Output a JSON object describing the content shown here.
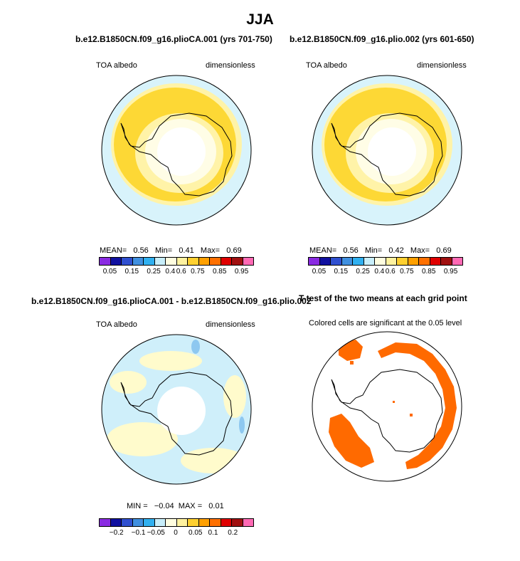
{
  "title": "JJA",
  "panels": [
    {
      "title": "b.e12.B1850CN.f09_g16.plioCA.001 (yrs 701-750)",
      "left_label": "TOA albedo",
      "right_label": "dimensionless",
      "stats": {
        "mean_label": "MEAN=",
        "mean": "0.56",
        "min_label": "Min=",
        "min": "0.41",
        "max_label": "Max=",
        "max": "0.69"
      }
    },
    {
      "title": "b.e12.B1850CN.f09_g16.plio.002 (yrs 601-650)",
      "left_label": "TOA albedo",
      "right_label": "dimensionless",
      "stats": {
        "mean_label": "MEAN=",
        "mean": "0.56",
        "min_label": "Min=",
        "min": "0.42",
        "max_label": "Max=",
        "max": "0.69"
      }
    },
    {
      "title": "b.e12.B1850CN.f09_g16.plioCA.001 - b.e12.B1850CN.f09_g16.plio.002",
      "left_label": "TOA albedo",
      "right_label": "dimensionless",
      "stats": {
        "min_label": "MIN =",
        "min": "−0.04",
        "max_label": "MAX =",
        "max": "0.01"
      }
    },
    {
      "title": "T-test of the two means at each grid point",
      "subtitle": "Colored cells are significant at the 0.05 level"
    }
  ],
  "colorbar_abs": {
    "colors": [
      "#8a2be2",
      "#1010a0",
      "#3050d0",
      "#4090e0",
      "#30b0f0",
      "#c8eefa",
      "#fffde0",
      "#fff2a0",
      "#ffd030",
      "#ffa000",
      "#ff7000",
      "#e00000",
      "#a01010",
      "#ff69b4"
    ],
    "ticks": [
      "0.05",
      "0.15",
      "0.25",
      "0.4",
      "0.6",
      "0.75",
      "0.85",
      "0.95"
    ]
  },
  "colorbar_diff": {
    "colors": [
      "#8a2be2",
      "#1010a0",
      "#3050d0",
      "#4090e0",
      "#30b0f0",
      "#c8eefa",
      "#fffde0",
      "#fff2a0",
      "#ffd030",
      "#ffa000",
      "#ff7000",
      "#e00000",
      "#a01010",
      "#ff69b4"
    ],
    "ticks": [
      "−0.2",
      "−0.1",
      "−0.05",
      "0",
      "0.05",
      "0.1",
      "0.2"
    ]
  },
  "colors": {
    "ocean_low": "#d8f3fb",
    "albedo_high": "#fdd835",
    "albedo_mid": "#fff3a8",
    "pale": "#fffde6",
    "diff_neg": "#cfeffa",
    "diff_pos": "#fffbcc",
    "diff_blue": "#8ec8f0",
    "significant": "#ff6a00",
    "coast": "#000000"
  }
}
